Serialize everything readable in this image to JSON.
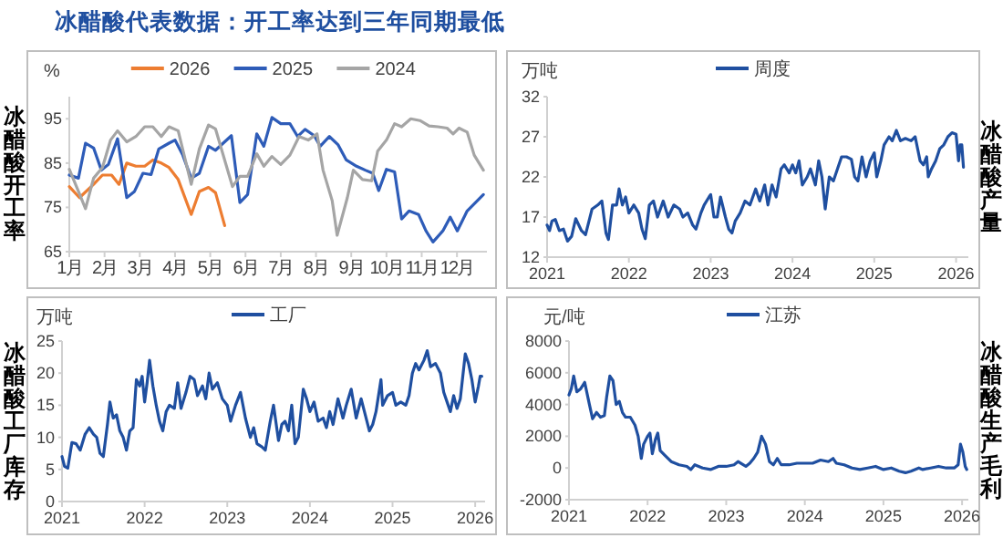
{
  "chart_data": [
    {
      "type": "line",
      "title": "冰醋酸代表数据：开工率达到三年同期最低",
      "ylabel": "冰醋酸开工率",
      "annotations": [
        "%"
      ],
      "legend": "top",
      "grid": false,
      "marker": "none",
      "line_style": "solid",
      "xlim": [
        1,
        12.85
      ],
      "ylim": [
        65,
        100
      ],
      "yticks": [
        65,
        75,
        85,
        95
      ],
      "xticks": [
        {
          "value": 1,
          "label": "1月"
        },
        {
          "value": 2,
          "label": "2月"
        },
        {
          "value": 3,
          "label": "3月"
        },
        {
          "value": 4,
          "label": "4月"
        },
        {
          "value": 5,
          "label": "5月"
        },
        {
          "value": 6,
          "label": "6月"
        },
        {
          "value": 7,
          "label": "7月"
        },
        {
          "value": 8,
          "label": "8月"
        },
        {
          "value": 9,
          "label": "9月"
        },
        {
          "value": 10,
          "label": "10月"
        },
        {
          "value": 11,
          "label": "11月"
        },
        {
          "value": 12,
          "label": "12月"
        }
      ],
      "series": [
        {
          "name": "2026",
          "color": "#ed7d31",
          "x": [
            1,
            1.29,
            1.69,
            1.94,
            2.2,
            2.41,
            2.63,
            2.89,
            3.14,
            3.37,
            3.61,
            3.83,
            4.09,
            4.46,
            4.69,
            4.95,
            5.15,
            5.41
          ],
          "values": [
            79.7,
            77.2,
            80.2,
            82.3,
            82.3,
            80.2,
            85,
            84.3,
            84.3,
            85.7,
            85,
            84,
            81.3,
            73.4,
            78.6,
            79.5,
            78.3,
            70.9
          ]
        },
        {
          "name": "2025",
          "color": "#2e5cb8",
          "x": [
            1,
            1.26,
            1.46,
            1.69,
            1.91,
            2.11,
            2.37,
            2.63,
            2.85,
            3.09,
            3.32,
            3.54,
            3.83,
            4.0,
            4.22,
            4.46,
            4.69,
            4.95,
            5.15,
            5.6,
            5.84,
            6.06,
            6.32,
            6.52,
            6.75,
            7.0,
            7.26,
            7.48,
            7.69,
            7.95,
            8.12,
            8.38,
            8.63,
            8.86,
            9.15,
            9.4,
            9.61,
            9.78,
            10.0,
            10.23,
            10.43,
            10.64,
            10.91,
            11.12,
            11.32,
            11.6,
            11.81,
            12.01,
            12.29,
            12.75
          ],
          "values": [
            82.3,
            81.6,
            89.5,
            88.4,
            83.4,
            84.7,
            90.5,
            77.2,
            78.6,
            82.7,
            82.4,
            88.2,
            89.5,
            90.2,
            86.8,
            81.6,
            82.7,
            88.8,
            87.9,
            91.2,
            76.1,
            77.9,
            91.6,
            88.8,
            95.3,
            93.9,
            93.9,
            91,
            92.6,
            91.2,
            88.8,
            91,
            89.1,
            85.7,
            84.3,
            83.4,
            82.7,
            78.8,
            83.6,
            83,
            72.4,
            74.2,
            73.4,
            69.7,
            67.2,
            69.7,
            72.8,
            69.7,
            74.2,
            77.9
          ]
        },
        {
          "name": "2024",
          "color": "#a5a5a5",
          "x": [
            1,
            1.26,
            1.46,
            1.69,
            1.94,
            2.17,
            2.37,
            2.63,
            2.89,
            3.14,
            3.37,
            3.61,
            3.83,
            4.09,
            4.46,
            4.69,
            4.95,
            5.15,
            5.63,
            5.84,
            6.06,
            6.32,
            6.52,
            6.75,
            7.0,
            7.26,
            7.52,
            7.78,
            8.03,
            8.2,
            8.46,
            8.6,
            8.89,
            9.06,
            9.32,
            9.58,
            9.75,
            10.0,
            10.23,
            10.43,
            10.69,
            10.95,
            11.21,
            11.46,
            11.72,
            11.89,
            12.06,
            12.29,
            12.49,
            12.75
          ],
          "values": [
            83.6,
            78.6,
            74.7,
            81.6,
            84,
            90.2,
            92.3,
            89.8,
            91,
            93.2,
            93.2,
            91,
            93.2,
            92.3,
            80.2,
            88.2,
            93.6,
            92.7,
            79.7,
            82,
            82,
            87.1,
            84.3,
            86.5,
            84.7,
            86.8,
            91,
            90.2,
            91.6,
            83.4,
            76.5,
            68.7,
            77.2,
            83.4,
            81.3,
            81,
            87.7,
            90.2,
            93.9,
            93.2,
            95,
            94.6,
            93.4,
            93.2,
            92.9,
            91.6,
            92.9,
            92,
            86.8,
            83.4
          ]
        }
      ]
    },
    {
      "type": "line",
      "ylabel": "冰醋酸产量",
      "annotations": [
        "万吨"
      ],
      "legend": "top",
      "grid": false,
      "marker": "none",
      "line_style": "solid",
      "xlim": [
        2021,
        2026.15
      ],
      "ylim": [
        12,
        32
      ],
      "yticks": [
        12,
        17,
        22,
        27,
        32
      ],
      "xticks": [
        2021,
        2022,
        2023,
        2024,
        2025,
        2026
      ],
      "series": [
        {
          "name": "周度",
          "color": "#1f4fa0",
          "x": [
            2021.0,
            2021.03,
            2021.06,
            2021.1,
            2021.15,
            2021.2,
            2021.25,
            2021.3,
            2021.35,
            2021.42,
            2021.47,
            2021.55,
            2021.62,
            2021.67,
            2021.72,
            2021.75,
            2021.8,
            2021.85,
            2021.88,
            2021.92,
            2021.96,
            2022.0,
            2022.06,
            2022.12,
            2022.16,
            2022.2,
            2022.25,
            2022.3,
            2022.35,
            2022.42,
            2022.48,
            2022.55,
            2022.62,
            2022.66,
            2022.72,
            2022.78,
            2022.82,
            2022.88,
            2022.92,
            2022.98,
            2023.0,
            2023.04,
            2023.08,
            2023.12,
            2023.18,
            2023.22,
            2023.26,
            2023.3,
            2023.36,
            2023.42,
            2023.48,
            2023.55,
            2023.6,
            2023.66,
            2023.7,
            2023.75,
            2023.8,
            2023.86,
            2023.9,
            2023.96,
            2024.0,
            2024.04,
            2024.08,
            2024.12,
            2024.18,
            2024.22,
            2024.28,
            2024.32,
            2024.36,
            2024.4,
            2024.45,
            2024.5,
            2024.55,
            2024.6,
            2024.66,
            2024.72,
            2024.76,
            2024.8,
            2024.85,
            2024.9,
            2024.95,
            2025.0,
            2025.03,
            2025.08,
            2025.12,
            2025.18,
            2025.22,
            2025.27,
            2025.32,
            2025.38,
            2025.45,
            2025.5,
            2025.56,
            2025.6,
            2025.64,
            2025.66,
            2025.7,
            2025.75,
            2025.8,
            2025.85,
            2025.9,
            2025.95,
            2026.0,
            2026.03,
            2026.05,
            2026.07,
            2026.09
          ],
          "values": [
            16,
            15.3,
            16.5,
            16.7,
            15.3,
            15.5,
            14.0,
            14.6,
            16.8,
            15.3,
            14.8,
            18,
            18.5,
            19,
            15,
            14.2,
            18.5,
            18.5,
            20.5,
            18.5,
            19.5,
            17.5,
            18.5,
            17.5,
            15.5,
            14.3,
            18.5,
            19,
            17,
            19,
            17,
            18.5,
            18,
            17,
            17.5,
            16,
            15.5,
            17.5,
            18.5,
            19.5,
            19.8,
            17,
            17,
            19.5,
            17,
            15.5,
            15,
            16.5,
            17.5,
            19,
            18.5,
            20.5,
            19,
            21,
            18.5,
            21,
            19.5,
            23,
            23.5,
            22.5,
            23.5,
            22.5,
            24,
            21,
            22,
            23,
            21,
            24,
            22,
            18,
            22,
            21.5,
            23,
            24.5,
            24.5,
            24.2,
            22,
            21.5,
            24.5,
            22,
            24,
            25,
            22,
            24,
            26,
            27,
            26.5,
            27.8,
            26.5,
            26.8,
            26.5,
            27,
            24,
            23.5,
            24.5,
            22,
            23,
            24,
            25.5,
            26,
            27,
            27.5,
            27.3,
            24,
            26,
            26,
            23.2
          ]
        }
      ]
    },
    {
      "type": "line",
      "ylabel": "冰醋酸工厂库存",
      "annotations": [
        "万吨"
      ],
      "legend": "top",
      "grid": false,
      "marker": "none",
      "line_style": "solid",
      "xlim": [
        2021,
        2026.12
      ],
      "ylim": [
        0,
        25
      ],
      "yticks": [
        0,
        5,
        10,
        15,
        20,
        25
      ],
      "xticks": [
        2021,
        2022,
        2023,
        2024,
        2025,
        2026
      ],
      "series": [
        {
          "name": "工厂",
          "color": "#1f4fa0",
          "x": [
            2021.0,
            2021.03,
            2021.07,
            2021.12,
            2021.17,
            2021.22,
            2021.28,
            2021.33,
            2021.38,
            2021.42,
            2021.46,
            2021.5,
            2021.55,
            2021.58,
            2021.62,
            2021.66,
            2021.7,
            2021.74,
            2021.78,
            2021.82,
            2021.86,
            2021.9,
            2021.94,
            2021.97,
            2022.0,
            2022.03,
            2022.06,
            2022.1,
            2022.14,
            2022.18,
            2022.22,
            2022.26,
            2022.3,
            2022.36,
            2022.4,
            2022.44,
            2022.5,
            2022.55,
            2022.6,
            2022.64,
            2022.7,
            2022.74,
            2022.78,
            2022.82,
            2022.88,
            2022.94,
            2023.0,
            2023.04,
            2023.1,
            2023.16,
            2023.22,
            2023.28,
            2023.32,
            2023.36,
            2023.42,
            2023.46,
            2023.52,
            2023.56,
            2023.62,
            2023.66,
            2023.7,
            2023.74,
            2023.78,
            2023.82,
            2023.86,
            2023.92,
            2023.96,
            2024.0,
            2024.05,
            2024.1,
            2024.16,
            2024.2,
            2024.24,
            2024.28,
            2024.34,
            2024.4,
            2024.44,
            2024.5,
            2024.56,
            2024.62,
            2024.66,
            2024.72,
            2024.76,
            2024.8,
            2024.86,
            2024.88,
            2024.94,
            2025.0,
            2025.04,
            2025.1,
            2025.16,
            2025.2,
            2025.24,
            2025.28,
            2025.32,
            2025.38,
            2025.42,
            2025.46,
            2025.52,
            2025.58,
            2025.62,
            2025.66,
            2025.7,
            2025.74,
            2025.78,
            2025.82,
            2025.88,
            2025.92,
            2025.96,
            2026.0,
            2026.04,
            2026.06,
            2026.08
          ],
          "values": [
            7,
            5.5,
            5.2,
            9.2,
            9,
            8,
            10.5,
            11.5,
            10.5,
            10,
            7.5,
            7,
            12,
            15.5,
            13,
            13.5,
            11,
            10,
            8,
            11,
            11.5,
            19,
            18,
            19.5,
            15.5,
            18.5,
            22,
            18,
            15,
            12.5,
            11,
            14,
            15,
            14.5,
            18.5,
            14.5,
            17,
            19.5,
            19,
            16.5,
            18,
            16,
            20,
            17.5,
            18.5,
            16,
            15,
            12.5,
            15,
            17,
            13,
            10,
            11.5,
            9,
            8.5,
            8,
            12.5,
            15,
            9.5,
            12,
            12.5,
            11,
            15,
            9,
            10,
            17.5,
            16,
            14,
            15.5,
            12.5,
            13,
            11.5,
            14,
            12,
            16,
            13,
            15,
            17.5,
            13,
            16,
            14,
            11,
            12,
            14,
            19,
            15,
            16.5,
            17,
            15,
            15.5,
            15,
            16.5,
            20,
            21.5,
            20.5,
            22,
            23.5,
            21,
            21.5,
            20,
            17,
            15.5,
            14,
            16.5,
            14.5,
            16,
            23,
            21.5,
            19,
            15.5,
            18,
            19.5,
            19.5
          ]
        }
      ]
    },
    {
      "type": "line",
      "ylabel": "冰醋酸生产毛利",
      "annotations": [
        "元/吨"
      ],
      "legend": "top",
      "grid": false,
      "marker": "none",
      "line_style": "solid",
      "xlim": [
        2021,
        2026.08
      ],
      "ylim": [
        -2000,
        8000
      ],
      "yticks": [
        -2000,
        0,
        2000,
        4000,
        6000,
        8000
      ],
      "xticks": [
        2021,
        2022,
        2023,
        2024,
        2025,
        2026
      ],
      "series": [
        {
          "name": "江苏",
          "color": "#1f4fa0",
          "x": [
            2021.0,
            2021.03,
            2021.06,
            2021.1,
            2021.15,
            2021.2,
            2021.26,
            2021.3,
            2021.35,
            2021.4,
            2021.45,
            2021.48,
            2021.52,
            2021.56,
            2021.6,
            2021.64,
            2021.68,
            2021.72,
            2021.78,
            2021.84,
            2021.88,
            2021.92,
            2021.95,
            2022.0,
            2022.03,
            2022.06,
            2022.1,
            2022.13,
            2022.16,
            2022.22,
            2022.3,
            2022.4,
            2022.5,
            2022.55,
            2022.6,
            2022.7,
            2022.8,
            2022.9,
            2023.0,
            2023.1,
            2023.15,
            2023.25,
            2023.3,
            2023.35,
            2023.4,
            2023.45,
            2023.5,
            2023.55,
            2023.6,
            2023.65,
            2023.7,
            2023.8,
            2023.9,
            2024.0,
            2024.1,
            2024.2,
            2024.3,
            2024.36,
            2024.4,
            2024.5,
            2024.6,
            2024.7,
            2024.8,
            2024.9,
            2025.0,
            2025.1,
            2025.2,
            2025.28,
            2025.35,
            2025.45,
            2025.5,
            2025.6,
            2025.7,
            2025.8,
            2025.9,
            2025.95,
            2025.98,
            2026.01,
            2026.04,
            2026.06
          ],
          "values": [
            4600,
            5000,
            5800,
            4800,
            5000,
            5400,
            4000,
            3100,
            3500,
            3200,
            3300,
            4500,
            5800,
            5500,
            4000,
            4200,
            3500,
            3200,
            3200,
            2700,
            2000,
            600,
            1500,
            2000,
            2200,
            900,
            1800,
            2200,
            1100,
            800,
            400,
            200,
            100,
            -100,
            200,
            0,
            -100,
            100,
            100,
            200,
            400,
            100,
            300,
            600,
            1000,
            2000,
            1500,
            400,
            200,
            600,
            200,
            200,
            300,
            300,
            300,
            500,
            400,
            600,
            300,
            200,
            0,
            -100,
            0,
            100,
            -100,
            0,
            -200,
            -300,
            -200,
            0,
            -100,
            0,
            100,
            0,
            0,
            200,
            1500,
            1000,
            100,
            -100
          ]
        }
      ]
    }
  ]
}
